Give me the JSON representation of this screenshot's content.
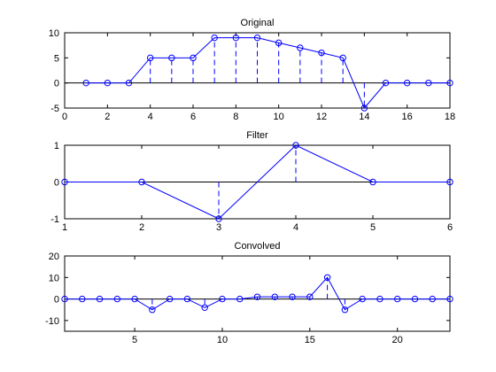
{
  "chart_data": [
    {
      "type": "line",
      "title": "Original",
      "xlabel": "",
      "ylabel": "",
      "xlim": [
        0,
        18
      ],
      "ylim": [
        -5,
        10
      ],
      "xticks": [
        0,
        2,
        4,
        6,
        8,
        10,
        12,
        14,
        16,
        18
      ],
      "yticks": [
        -5,
        0,
        5,
        10
      ],
      "x": [
        1,
        2,
        3,
        4,
        5,
        6,
        7,
        8,
        9,
        10,
        11,
        12,
        13,
        14,
        15,
        16,
        17,
        18
      ],
      "y": [
        0,
        0,
        0,
        5,
        5,
        5,
        9,
        9,
        9,
        8,
        7,
        6,
        5,
        -5,
        0,
        0,
        0,
        0
      ],
      "color": "#0000ff"
    },
    {
      "type": "line",
      "title": "Filter",
      "xlabel": "",
      "ylabel": "",
      "xlim": [
        1,
        6
      ],
      "ylim": [
        -1,
        1
      ],
      "xticks": [
        1,
        2,
        3,
        4,
        5,
        6
      ],
      "yticks": [
        -1,
        0,
        1
      ],
      "x": [
        1,
        2,
        3,
        4,
        5,
        6
      ],
      "y": [
        0,
        0,
        -1,
        1,
        0,
        0
      ],
      "color": "#0000ff"
    },
    {
      "type": "line",
      "title": "Convolved",
      "xlabel": "",
      "ylabel": "",
      "xlim": [
        1,
        23
      ],
      "ylim": [
        -15,
        20
      ],
      "xticks": [
        5,
        10,
        15,
        20
      ],
      "yticks": [
        -10,
        0,
        10,
        20
      ],
      "x": [
        1,
        2,
        3,
        4,
        5,
        6,
        7,
        8,
        9,
        10,
        11,
        12,
        13,
        14,
        15,
        16,
        17,
        18,
        19,
        20,
        21,
        22,
        23
      ],
      "y": [
        0,
        0,
        0,
        0,
        0,
        -5,
        0,
        0,
        -4,
        0,
        0,
        1,
        1,
        1,
        1,
        10,
        -5,
        0,
        0,
        0,
        0,
        0,
        0
      ],
      "color": "#0000ff"
    }
  ]
}
